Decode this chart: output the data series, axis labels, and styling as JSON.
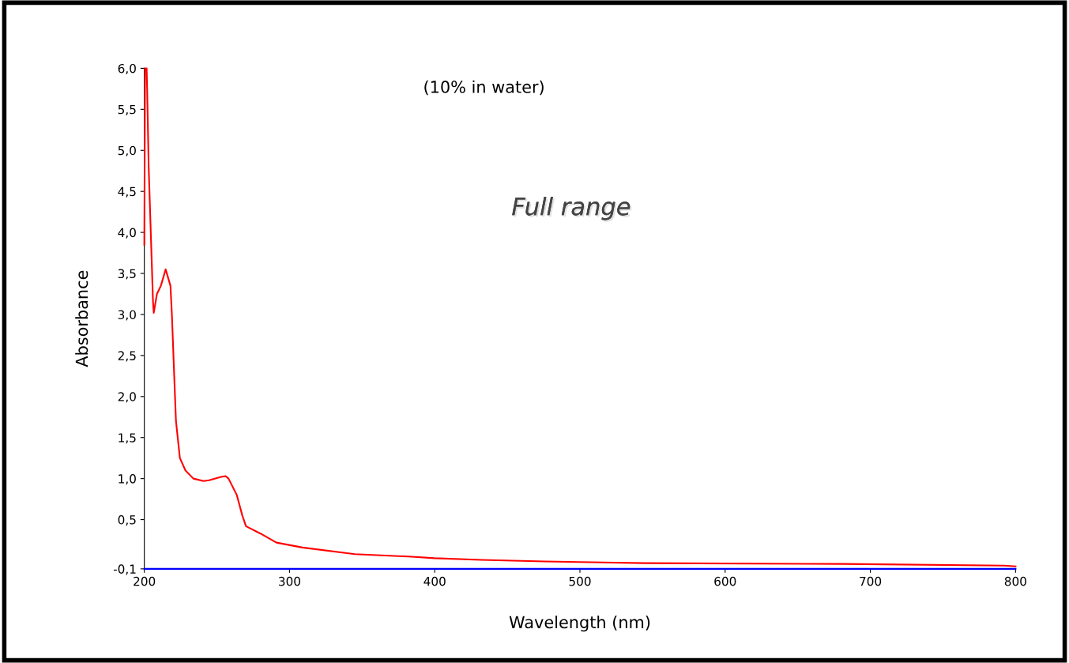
{
  "chart_data": {
    "type": "line",
    "title": "Full range",
    "xlabel": "Wavelength (nm)",
    "ylabel": "Absorbance",
    "annotations": [
      "(10% in water)"
    ],
    "xlim": [
      200,
      800
    ],
    "xticks": [
      200,
      300,
      400,
      500,
      600,
      700,
      800
    ],
    "ylim": [
      -0.1,
      6.0
    ],
    "yticks": [
      {
        "value": -0.1,
        "label": "-0,1"
      },
      {
        "value": 0.5,
        "label": "0,5"
      },
      {
        "value": 1.0,
        "label": "1,0"
      },
      {
        "value": 1.5,
        "label": "1,5"
      },
      {
        "value": 2.0,
        "label": "2,0"
      },
      {
        "value": 2.5,
        "label": "2,5"
      },
      {
        "value": 3.0,
        "label": "3,0"
      },
      {
        "value": 3.5,
        "label": "3,5"
      },
      {
        "value": 4.0,
        "label": "4,0"
      },
      {
        "value": 4.5,
        "label": "4,5"
      },
      {
        "value": 5.0,
        "label": "5,0"
      },
      {
        "value": 5.5,
        "label": "5,5"
      },
      {
        "value": 6.0,
        "label": "6,0"
      }
    ],
    "grid": false,
    "marker": "none",
    "line_style": "solid",
    "series": [
      {
        "color": "#0000ff",
        "x": [
          200,
          800
        ],
        "values": [
          -0.1,
          -0.1
        ]
      },
      {
        "color": "#ff0000",
        "x": [
          200,
          200.5,
          201.6,
          202,
          203,
          205,
          206,
          206.5,
          208.7,
          211.4,
          214.7,
          218,
          219,
          220.7,
          221.8,
          224.5,
          228.3,
          233.8,
          240.8,
          244.6,
          252.8,
          256,
          258,
          263.7,
          267.5,
          270,
          280,
          291,
          309,
          345,
          382,
          400,
          432,
          476,
          545,
          681,
          792,
          800
        ],
        "values": [
          3.85,
          6.0,
          6.0,
          5.7,
          4.8,
          3.7,
          3.15,
          3.02,
          3.25,
          3.35,
          3.55,
          3.35,
          3.0,
          2.2,
          1.7,
          1.25,
          1.1,
          1.0,
          0.97,
          0.98,
          1.02,
          1.03,
          1.0,
          0.8,
          0.55,
          0.42,
          0.33,
          0.22,
          0.16,
          0.08,
          0.05,
          0.03,
          0.01,
          -0.01,
          -0.03,
          -0.04,
          -0.06,
          -0.07
        ]
      }
    ]
  }
}
